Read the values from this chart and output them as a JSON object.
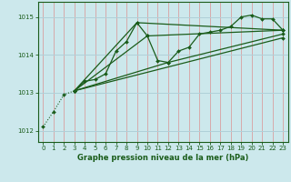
{
  "title": "Graphe pression niveau de la mer (hPa)",
  "bg_color": "#cce8ec",
  "grid_color": "#b0d0d8",
  "vgrid_color": "#d8a0a0",
  "line_color": "#1a5c1a",
  "xlim": [
    -0.5,
    23.5
  ],
  "ylim": [
    1011.7,
    1015.4
  ],
  "yticks": [
    1012,
    1013,
    1014,
    1015
  ],
  "xticks": [
    0,
    1,
    2,
    3,
    4,
    5,
    6,
    7,
    8,
    9,
    10,
    11,
    12,
    13,
    14,
    15,
    16,
    17,
    18,
    19,
    20,
    21,
    22,
    23
  ],
  "series_main": [
    [
      0,
      1012.1
    ],
    [
      1,
      1012.5
    ],
    [
      2,
      1012.95
    ],
    [
      3,
      1013.05
    ],
    [
      4,
      1013.3
    ],
    [
      5,
      1013.35
    ],
    [
      6,
      1013.5
    ],
    [
      7,
      1014.1
    ],
    [
      8,
      1014.35
    ],
    [
      9,
      1014.85
    ],
    [
      10,
      1014.5
    ],
    [
      11,
      1013.85
    ],
    [
      12,
      1013.8
    ],
    [
      13,
      1014.1
    ],
    [
      14,
      1014.2
    ],
    [
      15,
      1014.55
    ],
    [
      16,
      1014.6
    ],
    [
      17,
      1014.65
    ],
    [
      18,
      1014.75
    ],
    [
      19,
      1015.0
    ],
    [
      20,
      1015.05
    ],
    [
      21,
      1014.95
    ],
    [
      22,
      1014.95
    ],
    [
      23,
      1014.65
    ]
  ],
  "series2": [
    [
      3,
      1013.05
    ],
    [
      10,
      1014.5
    ],
    [
      23,
      1014.65
    ]
  ],
  "series3": [
    [
      3,
      1013.05
    ],
    [
      9,
      1014.85
    ],
    [
      23,
      1014.65
    ]
  ],
  "series4": [
    [
      3,
      1013.05
    ],
    [
      12,
      1013.8
    ],
    [
      23,
      1014.55
    ]
  ],
  "series5": [
    [
      3,
      1013.05
    ],
    [
      23,
      1014.45
    ]
  ]
}
